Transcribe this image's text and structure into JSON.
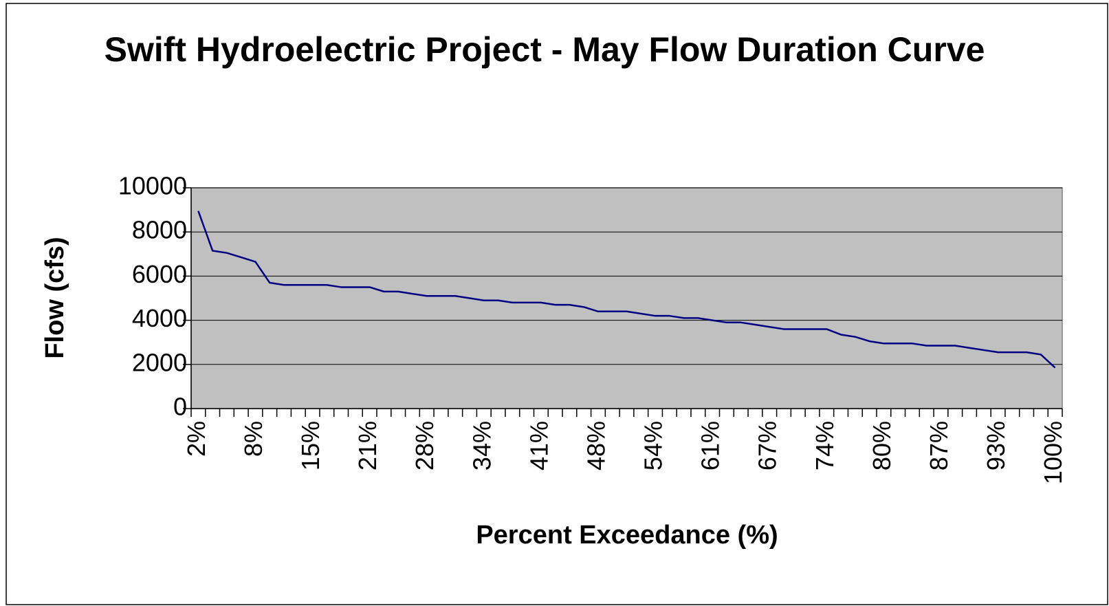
{
  "chart_data": {
    "type": "line",
    "title": "Swift Hydroelectric Project - May Flow Duration Curve",
    "x_label": "Percent Exceedance (%)",
    "y_label": "Flow (cfs)",
    "categories": [
      "2%",
      null,
      null,
      null,
      "8%",
      null,
      null,
      null,
      "15%",
      null,
      null,
      null,
      "21%",
      null,
      null,
      null,
      "28%",
      null,
      null,
      null,
      "34%",
      null,
      null,
      null,
      "41%",
      null,
      null,
      null,
      "48%",
      null,
      null,
      null,
      "54%",
      null,
      null,
      null,
      "61%",
      null,
      null,
      null,
      "67%",
      null,
      null,
      null,
      "74%",
      null,
      null,
      null,
      "80%",
      null,
      null,
      null,
      "87%",
      null,
      null,
      null,
      "93%",
      null,
      null,
      null,
      "100%"
    ],
    "series": [
      {
        "name": "Flow",
        "color": "#000080",
        "values": [
          8950,
          7150,
          7050,
          6850,
          6650,
          5700,
          5600,
          5600,
          5600,
          5600,
          5500,
          5500,
          5500,
          5300,
          5300,
          5200,
          5100,
          5100,
          5100,
          5000,
          4900,
          4900,
          4800,
          4800,
          4800,
          4700,
          4700,
          4600,
          4400,
          4400,
          4400,
          4300,
          4200,
          4200,
          4100,
          4100,
          4000,
          3900,
          3900,
          3800,
          3700,
          3600,
          3600,
          3600,
          3600,
          3350,
          3250,
          3050,
          2950,
          2950,
          2950,
          2850,
          2850,
          2850,
          2750,
          2650,
          2550,
          2550,
          2550,
          2450,
          1850
        ]
      }
    ],
    "ylim": [
      0,
      10000
    ],
    "yticks": [
      0,
      2000,
      4000,
      6000,
      8000,
      10000
    ],
    "grid": true,
    "plot_background": "#c0c0c0"
  }
}
